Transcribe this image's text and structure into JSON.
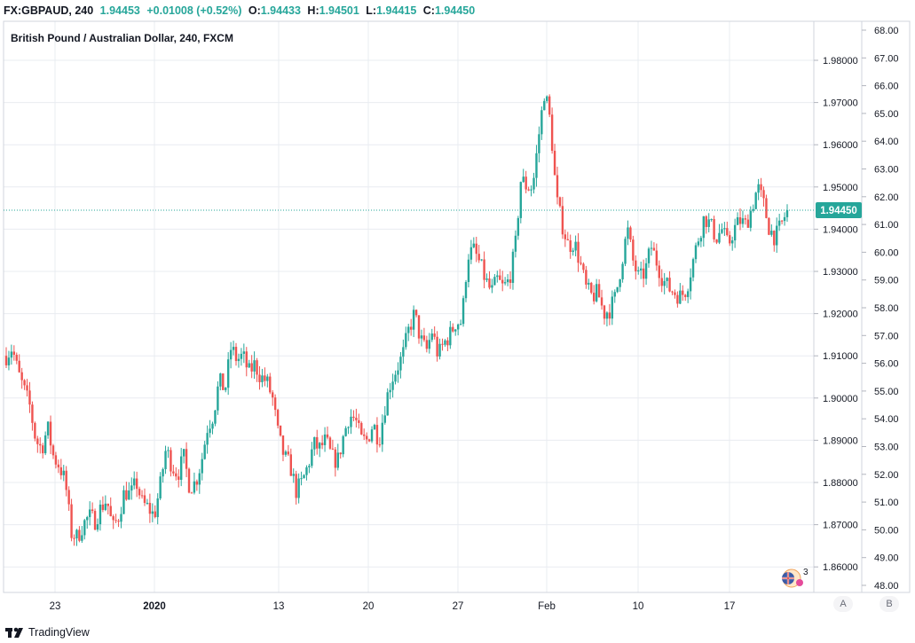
{
  "header": {
    "symbol": "FX:GBPAUD, 240",
    "last": "1.94453",
    "change": "+0.01008 (+0.52%)",
    "open_label": "O:",
    "open": "1.94433",
    "high_label": "H:",
    "high": "1.94501",
    "low_label": "L:",
    "low": "1.94415",
    "close_label": "C:",
    "close": "1.94450"
  },
  "legend_title": "British Pound / Australian Dollar, 240, FXCM",
  "price_label": "1.94450",
  "footer": {
    "brand": "TradingView",
    "btn_a": "A",
    "btn_b": "B"
  },
  "colors": {
    "up": "#26a69a",
    "down": "#ef5350",
    "grid": "#e9ecf1",
    "price_line": "#26a69a"
  },
  "chart_data": {
    "type": "candlestick",
    "title": "British Pound / Australian Dollar, 240, FXCM",
    "x_ticks": [
      "23",
      "2020",
      "13",
      "20",
      "27",
      "Feb",
      "10",
      "17"
    ],
    "y_ticks_right": [
      "1.98000",
      "1.97000",
      "1.96000",
      "1.95000",
      "1.94000",
      "1.93000",
      "1.92000",
      "1.91000",
      "1.90000",
      "1.89000",
      "1.88000",
      "1.87000",
      "1.86000"
    ],
    "y_ticks_outer": [
      "68.00",
      "67.00",
      "66.00",
      "65.00",
      "64.00",
      "63.00",
      "62.00",
      "61.00",
      "60.00",
      "59.00",
      "58.00",
      "57.00",
      "56.00",
      "55.00",
      "54.00",
      "53.00",
      "52.00",
      "51.00",
      "50.00",
      "49.00",
      "48.00"
    ],
    "ylim": [
      1.854,
      1.988
    ],
    "last_price": 1.9445,
    "close_path": [
      1.91,
      1.912,
      1.906,
      1.902,
      1.898,
      1.89,
      1.888,
      1.893,
      1.886,
      1.884,
      1.88,
      1.868,
      1.867,
      1.87,
      1.872,
      1.871,
      1.874,
      1.876,
      1.869,
      1.872,
      1.878,
      1.877,
      1.88,
      1.875,
      1.874,
      1.872,
      1.879,
      1.888,
      1.884,
      1.882,
      1.886,
      1.879,
      1.88,
      1.885,
      1.893,
      1.896,
      1.904,
      1.902,
      1.912,
      1.909,
      1.91,
      1.906,
      1.908,
      1.905,
      1.904,
      1.9,
      1.891,
      1.886,
      1.884,
      1.878,
      1.88,
      1.884,
      1.889,
      1.888,
      1.89,
      1.886,
      1.885,
      1.891,
      1.896,
      1.895,
      1.89,
      1.89,
      1.894,
      1.89,
      1.898,
      1.904,
      1.907,
      1.91,
      1.916,
      1.92,
      1.914,
      1.911,
      1.916,
      1.91,
      1.913,
      1.915,
      1.918,
      1.918,
      1.934,
      1.935,
      1.932,
      1.928,
      1.925,
      1.928,
      1.926,
      1.928,
      1.935,
      1.952,
      1.95,
      1.95,
      1.962,
      1.973,
      1.965,
      1.947,
      1.941,
      1.936,
      1.937,
      1.932,
      1.926,
      1.924,
      1.925,
      1.92,
      1.921,
      1.924,
      1.932,
      1.94,
      1.932,
      1.928,
      1.93,
      1.936,
      1.932,
      1.928,
      1.926,
      1.925,
      1.924,
      1.926,
      1.932,
      1.938,
      1.943,
      1.941,
      1.938,
      1.94,
      1.936,
      1.94,
      1.942,
      1.941,
      1.945,
      1.95,
      1.946,
      1.94,
      1.938,
      1.941,
      1.9445
    ]
  }
}
